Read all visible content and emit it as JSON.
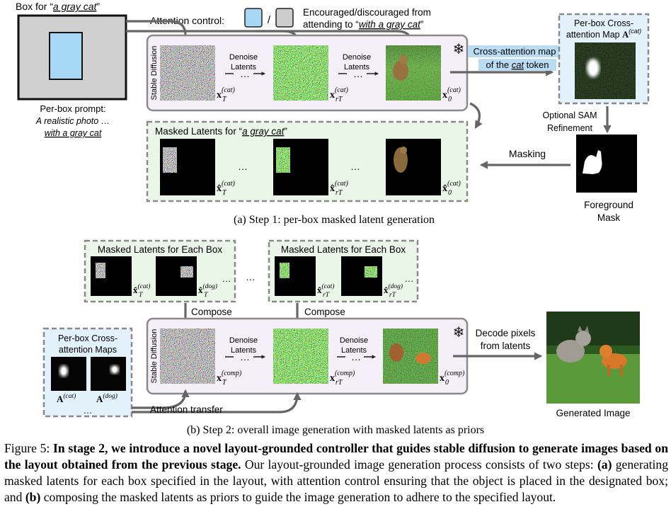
{
  "step1": {
    "box_for_prefix": "Box for “",
    "box_for_phrase": "a gray cat",
    "box_for_suffix": "”",
    "per_box_prompt_label": "Per-box prompt:",
    "prompt_line1": "A realistic photo …",
    "prompt_line2": "with a gray cat",
    "attention_control_label": "Attention control:",
    "attention_slash": "/",
    "encouraged_line1": "Encouraged/discouraged from",
    "encouraged_line2_prefix": "attending to “",
    "encouraged_line2_phrase": "with a gray cat",
    "encouraged_line2_suffix": "”",
    "stable_diffusion_label": "Stable Diffusion",
    "denoise_line1": "Denoise",
    "denoise_line2": "Latents",
    "ellipsis": "…",
    "latent_subscripts": [
      "T",
      "rT",
      "0"
    ],
    "cat_superscript": "(cat)",
    "crossattn_line1": "Cross-attention map",
    "crossattn_line2_prefix": "of the ",
    "crossattn_line2_word": "cat",
    "crossattn_line2_suffix": " token",
    "per_box_map_line1": "Per-box Cross-",
    "per_box_map_line2": "attention Map ",
    "map_symbol": "A",
    "optional_sam_line1": "Optional SAM",
    "optional_sam_line2": "Refinement",
    "masking_label": "Masking",
    "foreground_line1": "Foreground",
    "foreground_line2": "Mask",
    "masked_latents_prefix": "Masked Latents for “",
    "masked_latents_phrase": "a gray cat",
    "masked_latents_suffix": "”",
    "subcaption": "(a) Step 1: per-box masked latent generation"
  },
  "step2": {
    "masked_latents_each_box": "Masked Latents for Each Box",
    "compose_label": "Compose",
    "group_subscripts": [
      "T",
      "rT"
    ],
    "cat_superscript": "(cat)",
    "dog_superscript": "(dog)",
    "comp_superscript": "(comp)",
    "latent_subscripts": [
      "T",
      "rT",
      "0"
    ],
    "per_box_maps_line1": "Per-box Cross-",
    "per_box_maps_line2": "attention Maps",
    "map_symbol": "A",
    "stable_diffusion_label": "Stable Diffusion",
    "denoise_line1": "Denoise",
    "denoise_line2": "Latents",
    "ellipsis": "…",
    "attention_transfer_label": "Attention transfer",
    "decode_line1": "Decode pixels",
    "decode_line2": "from latents",
    "generated_image_label": "Generated Image",
    "subcaption": "(b) Step 2: overall image generation with masked latents as priors"
  },
  "caption": {
    "figure_label": "Figure 5:",
    "bold_text": "In stage 2, we introduce a novel layout-grounded controller that guides stable diffusion to generate images based on the layout obtained from the previous stage.",
    "text_1": "Our layout-grounded image generation process consists of two steps:",
    "bold_a": "(a)",
    "text_2": "generating masked latents for each box specified in the layout, with attention control ensuring that the object is placed in the designated box; and",
    "bold_b": "(b)",
    "text_3": "composing the masked latents as priors to guide the image generation to adhere to the specified layout."
  },
  "colors": {
    "gray_box": "#d0d0d0",
    "encouraged_blue": "#a6d8f5",
    "sd_panel_fill": "#f4eff8",
    "masked_panel_fill": "#eaf6e8",
    "crossattn_panel_fill": "#e3f1fb",
    "highlight_blue": "#b9dcf2",
    "arrow_gray": "#666666"
  }
}
